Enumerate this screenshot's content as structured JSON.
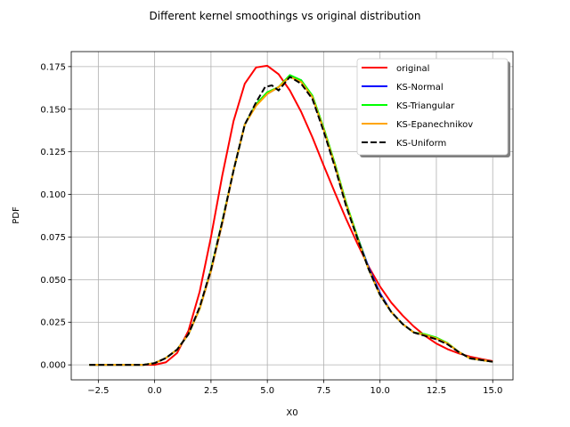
{
  "chart_data": {
    "type": "line",
    "title": "Different kernel smoothings vs original distribution",
    "xlabel": "X0",
    "ylabel": "PDF",
    "xlim": [
      -3.7,
      15.9
    ],
    "ylim": [
      -0.0088,
      0.1838
    ],
    "xticks": [
      -2.5,
      0.0,
      2.5,
      5.0,
      7.5,
      10.0,
      12.5,
      15.0
    ],
    "xtick_labels": [
      "−2.5",
      "0.0",
      "2.5",
      "5.0",
      "7.5",
      "10.0",
      "12.5",
      "15.0"
    ],
    "yticks": [
      0.0,
      0.025,
      0.05,
      0.075,
      0.1,
      0.125,
      0.15,
      0.175
    ],
    "ytick_labels": [
      "0.000",
      "0.025",
      "0.050",
      "0.075",
      "0.100",
      "0.125",
      "0.150",
      "0.175"
    ],
    "grid": true,
    "legend_position": "top-right",
    "series": [
      {
        "name": "original",
        "color": "#ff0000",
        "style": "solid",
        "x": [
          -2.9,
          -1.0,
          0.0,
          0.5,
          1.0,
          1.5,
          2.0,
          2.5,
          3.0,
          3.5,
          4.0,
          4.5,
          5.0,
          5.5,
          6.0,
          6.5,
          7.0,
          7.5,
          8.0,
          8.5,
          9.0,
          9.5,
          10.0,
          10.5,
          11.0,
          11.5,
          12.0,
          12.5,
          13.0,
          13.5,
          14.0,
          14.5,
          15.0
        ],
        "y": [
          0.0,
          0.0,
          0.0,
          0.0015,
          0.007,
          0.02,
          0.043,
          0.075,
          0.111,
          0.143,
          0.165,
          0.1745,
          0.1755,
          0.1705,
          0.161,
          0.1485,
          0.1335,
          0.117,
          0.101,
          0.0855,
          0.071,
          0.0575,
          0.046,
          0.0365,
          0.029,
          0.0225,
          0.017,
          0.0125,
          0.0092,
          0.0067,
          0.0048,
          0.0034,
          0.0022
        ]
      },
      {
        "name": "KS-Normal",
        "color": "#0000ff",
        "style": "solid",
        "x": [
          -2.9,
          -1.0,
          -0.5,
          0.0,
          0.5,
          1.0,
          1.5,
          2.0,
          2.5,
          3.0,
          3.5,
          4.0,
          4.5,
          5.0,
          5.5,
          6.0,
          6.5,
          7.0,
          7.5,
          8.0,
          8.5,
          9.0,
          9.5,
          10.0,
          10.5,
          11.0,
          11.5,
          12.0,
          12.5,
          13.0,
          13.5,
          14.0,
          14.5,
          15.0
        ],
        "y": [
          0.0,
          0.0,
          0.0,
          0.001,
          0.004,
          0.009,
          0.018,
          0.033,
          0.055,
          0.083,
          0.114,
          0.141,
          0.153,
          0.159,
          0.163,
          0.169,
          0.167,
          0.157,
          0.138,
          0.117,
          0.094,
          0.075,
          0.057,
          0.042,
          0.031,
          0.024,
          0.019,
          0.0175,
          0.0155,
          0.0125,
          0.0075,
          0.0038,
          0.0028,
          0.0018
        ]
      },
      {
        "name": "KS-Triangular",
        "color": "#00ff00",
        "style": "solid",
        "x": [
          -2.9,
          -1.0,
          -0.5,
          0.0,
          0.5,
          1.0,
          1.5,
          2.0,
          2.5,
          3.0,
          3.5,
          4.0,
          4.5,
          5.0,
          5.5,
          6.0,
          6.5,
          7.0,
          7.5,
          8.0,
          8.5,
          9.0,
          9.5,
          10.0,
          10.5,
          11.0,
          11.5,
          12.0,
          12.5,
          13.0,
          13.5,
          14.0,
          14.5,
          15.0
        ],
        "y": [
          0.0,
          0.0,
          0.0,
          0.001,
          0.004,
          0.009,
          0.018,
          0.033,
          0.056,
          0.084,
          0.114,
          0.141,
          0.153,
          0.16,
          0.163,
          0.17,
          0.167,
          0.158,
          0.139,
          0.118,
          0.095,
          0.075,
          0.056,
          0.041,
          0.031,
          0.024,
          0.019,
          0.018,
          0.016,
          0.0128,
          0.0075,
          0.0038,
          0.0028,
          0.0018
        ]
      },
      {
        "name": "KS-Epanechnikov",
        "color": "#ffa500",
        "style": "solid",
        "x": [
          -2.9,
          -1.0,
          -0.5,
          0.0,
          0.5,
          1.0,
          1.5,
          2.0,
          2.5,
          3.0,
          3.5,
          4.0,
          4.5,
          5.0,
          5.5,
          6.0,
          6.5,
          7.0,
          7.5,
          8.0,
          8.5,
          9.0,
          9.5,
          10.0,
          10.5,
          11.0,
          11.5,
          12.0,
          12.5,
          13.0,
          13.5,
          14.0,
          14.5,
          15.0
        ],
        "y": [
          0.0,
          0.0,
          0.0,
          0.001,
          0.004,
          0.009,
          0.018,
          0.033,
          0.055,
          0.083,
          0.114,
          0.141,
          0.152,
          0.159,
          0.163,
          0.169,
          0.166,
          0.157,
          0.138,
          0.117,
          0.094,
          0.074,
          0.056,
          0.041,
          0.031,
          0.024,
          0.019,
          0.0175,
          0.0155,
          0.0125,
          0.0075,
          0.0038,
          0.0028,
          0.0018
        ]
      },
      {
        "name": "KS-Uniform",
        "color": "#000000",
        "style": "dashed",
        "x": [
          -2.9,
          -1.0,
          -0.5,
          0.0,
          0.5,
          1.0,
          1.5,
          2.0,
          2.5,
          3.0,
          3.5,
          4.0,
          4.5,
          4.9,
          5.2,
          5.5,
          6.0,
          6.5,
          7.0,
          7.5,
          8.0,
          8.5,
          9.0,
          9.5,
          10.0,
          10.5,
          11.0,
          11.5,
          12.0,
          12.5,
          13.0,
          13.5,
          14.0,
          14.5,
          15.0
        ],
        "y": [
          0.0,
          0.0,
          0.0,
          0.001,
          0.004,
          0.009,
          0.018,
          0.034,
          0.056,
          0.084,
          0.114,
          0.141,
          0.154,
          0.163,
          0.164,
          0.161,
          0.169,
          0.165,
          0.156,
          0.137,
          0.116,
          0.093,
          0.074,
          0.056,
          0.041,
          0.031,
          0.024,
          0.019,
          0.017,
          0.015,
          0.012,
          0.0075,
          0.0038,
          0.0028,
          0.0018
        ]
      }
    ]
  }
}
